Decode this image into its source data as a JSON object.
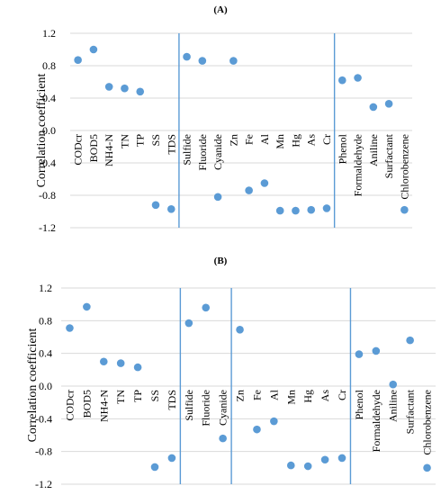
{
  "chart_data": [
    {
      "type": "scatter",
      "title": "(A)",
      "ylabel": "Correlation coefficient",
      "xlabel": "",
      "ylim": [
        -1.2,
        1.2
      ],
      "yticks": [
        -1.2,
        -0.8,
        -0.4,
        0.0,
        0.4,
        0.8,
        1.2
      ],
      "ytick_labels": [
        "-1.2",
        "-0.8",
        "-0.4",
        "0.0",
        "0.4",
        "0.8",
        "1.2"
      ],
      "grid": true,
      "categories": [
        "CODcr",
        "BOD5",
        "NH4-N",
        "TN",
        "TP",
        "SS",
        "TDS",
        "Sulfide",
        "Fluoride",
        "Cyanide",
        "Zn",
        "Fe",
        "Al",
        "Mn",
        "Hg",
        "As",
        "Cr",
        "Phenol",
        "Formaldehyde",
        "Aniline",
        "Surfactant",
        "Chlorobenzene"
      ],
      "values": [
        0.87,
        1.0,
        0.54,
        0.52,
        0.48,
        -0.92,
        -0.97,
        0.91,
        0.86,
        -0.82,
        0.86,
        -0.74,
        -0.65,
        -0.99,
        -0.99,
        -0.98,
        -0.96,
        0.62,
        0.65,
        0.29,
        0.33,
        -0.98
      ],
      "group_dividers_after": [
        "TDS",
        "Cr"
      ],
      "marker_color": "#5b9bd5",
      "divider_color": "#5b9bd5"
    },
    {
      "type": "scatter",
      "title": "(B)",
      "ylabel": "Correlation coefficient",
      "xlabel": "",
      "ylim": [
        -1.2,
        1.2
      ],
      "yticks": [
        -1.2,
        -0.8,
        -0.4,
        0.0,
        0.4,
        0.8,
        1.2
      ],
      "ytick_labels": [
        "-1.2",
        "-0.8",
        "-0.4",
        "0.0",
        "0.4",
        "0.8",
        "1.2"
      ],
      "grid": true,
      "categories": [
        "CODcr",
        "BOD5",
        "NH4-N",
        "TN",
        "TP",
        "SS",
        "TDS",
        "Sulfide",
        "Fluoride",
        "Cyanide",
        "Zn",
        "Fe",
        "Al",
        "Mn",
        "Hg",
        "As",
        "Cr",
        "Phenol",
        "Formaldehyde",
        "Aniline",
        "Surfactant",
        "Chlorobenzene"
      ],
      "values": [
        0.71,
        0.97,
        0.3,
        0.28,
        0.23,
        -0.99,
        -0.88,
        0.77,
        0.96,
        -0.64,
        0.69,
        -0.53,
        -0.43,
        -0.97,
        -0.98,
        -0.9,
        -0.88,
        0.39,
        0.43,
        0.02,
        0.56,
        -1.0
      ],
      "group_dividers_after": [
        "TDS",
        "Cyanide",
        "Cr"
      ],
      "marker_color": "#5b9bd5",
      "divider_color": "#5b9bd5"
    }
  ]
}
